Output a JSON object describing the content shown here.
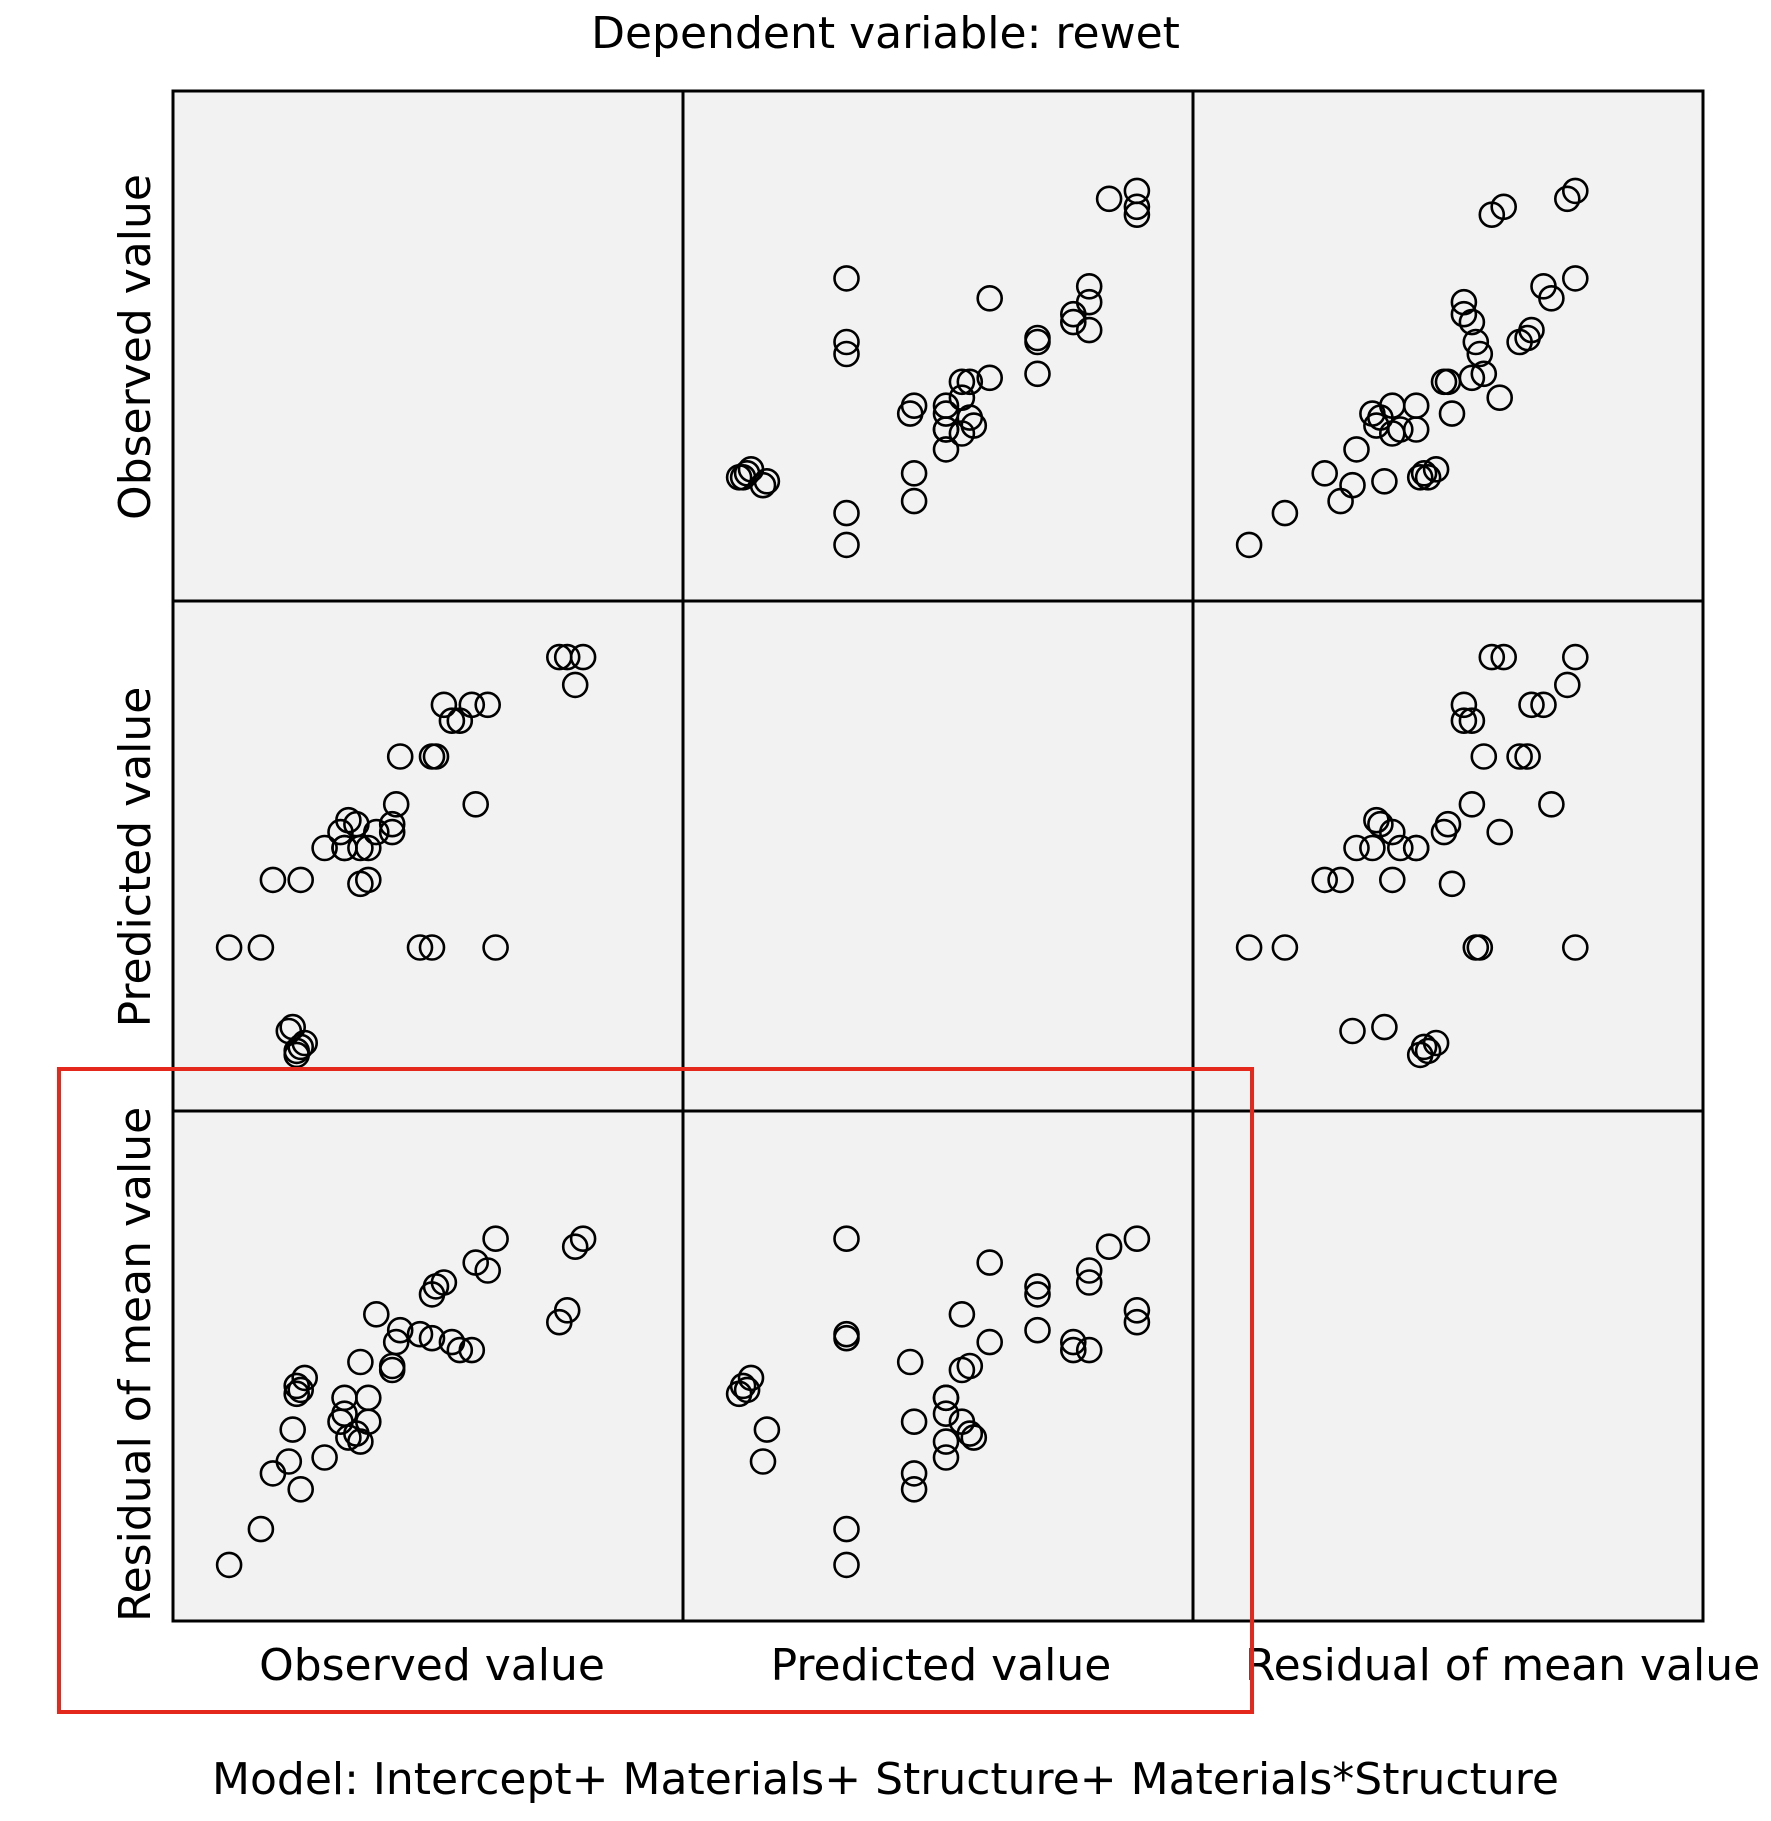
{
  "chart_data": {
    "type": "scatter-matrix",
    "title": "Dependent variable: rewet",
    "footer": "Model: Intercept+ Materials+ Structure+ Materials*Structure",
    "variables": [
      "Observed value",
      "Predicted value",
      "Residual of mean value"
    ],
    "highlight": "bottom-left panels (Residual of mean value vs Observed value and Predicted value)",
    "observations": [
      {
        "observed": 0.0,
        "predicted": 0.27,
        "residual": 0.0
      },
      {
        "observed": 0.08,
        "predicted": 0.27,
        "residual": 0.09
      },
      {
        "observed": 0.11,
        "predicted": 0.44,
        "residual": 0.23
      },
      {
        "observed": 0.15,
        "predicted": 0.06,
        "residual": 0.26
      },
      {
        "observed": 0.18,
        "predicted": 0.44,
        "residual": 0.19
      },
      {
        "observed": 0.16,
        "predicted": 0.07,
        "residual": 0.34
      },
      {
        "observed": 0.17,
        "predicted": 0.0,
        "residual": 0.43
      },
      {
        "observed": 0.17,
        "predicted": 0.01,
        "residual": 0.45
      },
      {
        "observed": 0.18,
        "predicted": 0.02,
        "residual": 0.44
      },
      {
        "observed": 0.19,
        "predicted": 0.03,
        "residual": 0.47
      },
      {
        "observed": 0.24,
        "predicted": 0.52,
        "residual": 0.27
      },
      {
        "observed": 0.28,
        "predicted": 0.56,
        "residual": 0.36
      },
      {
        "observed": 0.29,
        "predicted": 0.52,
        "residual": 0.42
      },
      {
        "observed": 0.3,
        "predicted": 0.59,
        "residual": 0.32
      },
      {
        "observed": 0.29,
        "predicted": 0.52,
        "residual": 0.38
      },
      {
        "observed": 0.32,
        "predicted": 0.58,
        "residual": 0.33
      },
      {
        "observed": 0.33,
        "predicted": 0.43,
        "residual": 0.51
      },
      {
        "observed": 0.35,
        "predicted": 0.44,
        "residual": 0.36
      },
      {
        "observed": 0.33,
        "predicted": 0.52,
        "residual": 0.31
      },
      {
        "observed": 0.35,
        "predicted": 0.52,
        "residual": 0.42
      },
      {
        "observed": 0.37,
        "predicted": 0.56,
        "residual": 0.63
      },
      {
        "observed": 0.41,
        "predicted": 0.56,
        "residual": 0.49
      },
      {
        "observed": 0.41,
        "predicted": 0.58,
        "residual": 0.5
      },
      {
        "observed": 0.42,
        "predicted": 0.63,
        "residual": 0.56
      },
      {
        "observed": 0.43,
        "predicted": 0.75,
        "residual": 0.59
      },
      {
        "observed": 0.48,
        "predicted": 0.27,
        "residual": 0.58
      },
      {
        "observed": 0.51,
        "predicted": 0.27,
        "residual": 0.57
      },
      {
        "observed": 0.51,
        "predicted": 0.75,
        "residual": 0.68
      },
      {
        "observed": 0.52,
        "predicted": 0.75,
        "residual": 0.7
      },
      {
        "observed": 0.54,
        "predicted": 0.88,
        "residual": 0.71
      },
      {
        "observed": 0.56,
        "predicted": 0.84,
        "residual": 0.56
      },
      {
        "observed": 0.58,
        "predicted": 0.84,
        "residual": 0.54
      },
      {
        "observed": 0.61,
        "predicted": 0.88,
        "residual": 0.54
      },
      {
        "observed": 0.62,
        "predicted": 0.63,
        "residual": 0.76
      },
      {
        "observed": 0.65,
        "predicted": 0.88,
        "residual": 0.74
      },
      {
        "observed": 0.67,
        "predicted": 0.27,
        "residual": 0.82
      },
      {
        "observed": 0.83,
        "predicted": 1.0,
        "residual": 0.61
      },
      {
        "observed": 0.85,
        "predicted": 1.0,
        "residual": 0.64
      },
      {
        "observed": 0.87,
        "predicted": 0.93,
        "residual": 0.8
      },
      {
        "observed": 0.89,
        "predicted": 1.0,
        "residual": 0.82
      }
    ]
  }
}
